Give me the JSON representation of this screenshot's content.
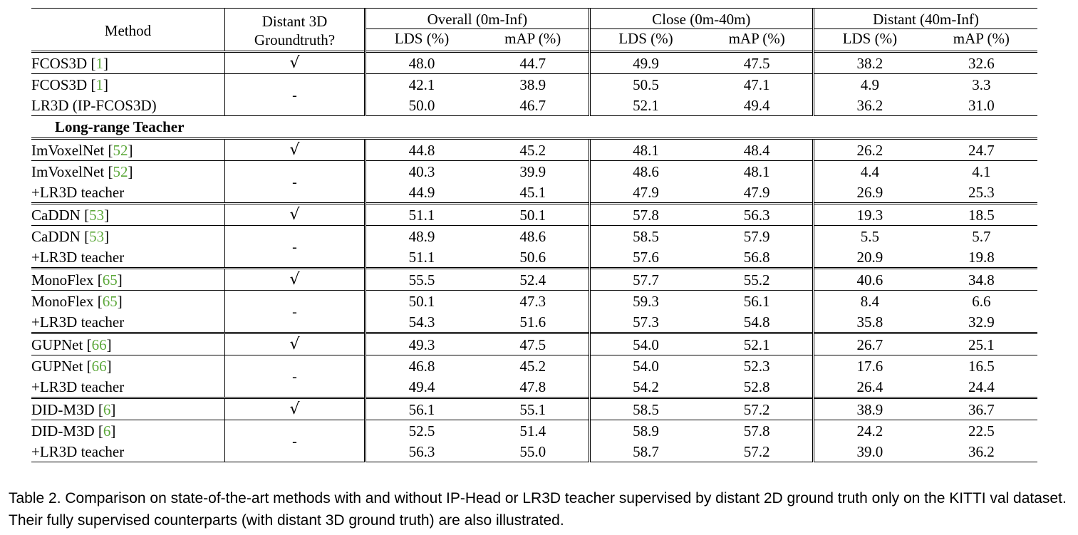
{
  "header": {
    "method": "Method",
    "gt_line1": "Distant 3D",
    "gt_line2": "Groundtruth?",
    "overall": "Overall (0m-Inf)",
    "close": "Close (0m-40m)",
    "distant": "Distant (40m-Inf)",
    "lds": "LDS (%)",
    "map": "mAP (%)"
  },
  "marks": {
    "check": "√",
    "dash": "-"
  },
  "fcos_group": [
    {
      "name": "FCOS3D",
      "cite": "1",
      "vals": [
        "48.0",
        "44.7",
        "49.9",
        "47.5",
        "38.2",
        "32.6"
      ]
    },
    {
      "name": "FCOS3D",
      "cite": "1",
      "vals": [
        "42.1",
        "38.9",
        "50.5",
        "47.1",
        "4.9",
        "3.3"
      ]
    },
    {
      "name": "LR3D (IP-FCOS3D)",
      "cite": "",
      "vals": [
        "50.0",
        "46.7",
        "52.1",
        "49.4",
        "36.2",
        "31.0"
      ]
    }
  ],
  "section_title": "Long-range Teacher",
  "groups": [
    {
      "rows": [
        {
          "name": "ImVoxelNet",
          "cite": "52",
          "vals": [
            "44.8",
            "45.2",
            "48.1",
            "48.4",
            "26.2",
            "24.7"
          ]
        },
        {
          "name": "ImVoxelNet",
          "cite": "52",
          "vals": [
            "40.3",
            "39.9",
            "48.6",
            "48.1",
            "4.4",
            "4.1"
          ]
        },
        {
          "name": "+LR3D teacher",
          "cite": "",
          "vals": [
            "44.9",
            "45.1",
            "47.9",
            "47.9",
            "26.9",
            "25.3"
          ]
        }
      ]
    },
    {
      "rows": [
        {
          "name": "CaDDN",
          "cite": "53",
          "vals": [
            "51.1",
            "50.1",
            "57.8",
            "56.3",
            "19.3",
            "18.5"
          ]
        },
        {
          "name": "CaDDN",
          "cite": "53",
          "vals": [
            "48.9",
            "48.6",
            "58.5",
            "57.9",
            "5.5",
            "5.7"
          ]
        },
        {
          "name": "+LR3D teacher",
          "cite": "",
          "vals": [
            "51.1",
            "50.6",
            "57.6",
            "56.8",
            "20.9",
            "19.8"
          ]
        }
      ]
    },
    {
      "rows": [
        {
          "name": "MonoFlex",
          "cite": "65",
          "vals": [
            "55.5",
            "52.4",
            "57.7",
            "55.2",
            "40.6",
            "34.8"
          ]
        },
        {
          "name": "MonoFlex",
          "cite": "65",
          "vals": [
            "50.1",
            "47.3",
            "59.3",
            "56.1",
            "8.4",
            "6.6"
          ]
        },
        {
          "name": "+LR3D teacher",
          "cite": "",
          "vals": [
            "54.3",
            "51.6",
            "57.3",
            "54.8",
            "35.8",
            "32.9"
          ]
        }
      ]
    },
    {
      "rows": [
        {
          "name": "GUPNet",
          "cite": "66",
          "vals": [
            "49.3",
            "47.5",
            "54.0",
            "52.1",
            "26.7",
            "25.1"
          ]
        },
        {
          "name": "GUPNet",
          "cite": "66",
          "vals": [
            "46.8",
            "45.2",
            "54.0",
            "52.3",
            "17.6",
            "16.5"
          ]
        },
        {
          "name": "+LR3D teacher",
          "cite": "",
          "vals": [
            "49.4",
            "47.8",
            "54.2",
            "52.8",
            "26.4",
            "24.4"
          ]
        }
      ]
    },
    {
      "rows": [
        {
          "name": "DID-M3D",
          "cite": "6",
          "vals": [
            "56.1",
            "55.1",
            "58.5",
            "57.2",
            "38.9",
            "36.7"
          ]
        },
        {
          "name": "DID-M3D",
          "cite": "6",
          "vals": [
            "52.5",
            "51.4",
            "58.9",
            "57.8",
            "24.2",
            "22.5"
          ]
        },
        {
          "name": "+LR3D teacher",
          "cite": "",
          "vals": [
            "56.3",
            "55.0",
            "58.7",
            "57.2",
            "39.0",
            "36.2"
          ]
        }
      ]
    }
  ],
  "caption": "Table 2. Comparison on state-of-the-art methods with and without IP-Head or LR3D teacher supervised by distant 2D ground truth only on the KITTI val dataset. Their fully supervised counterparts (with distant 3D ground truth) are also illustrated."
}
